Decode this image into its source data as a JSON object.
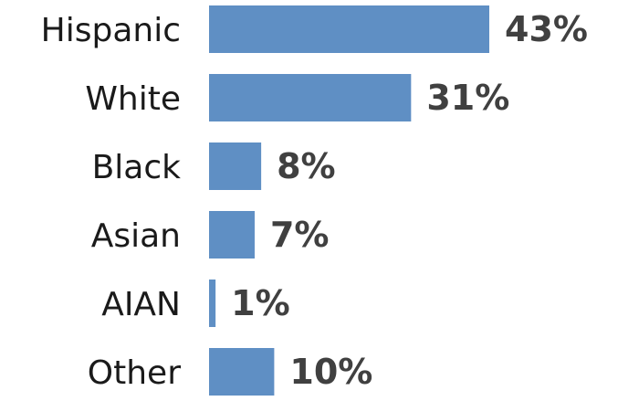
{
  "chart_data": {
    "type": "bar",
    "orientation": "horizontal",
    "categories": [
      "Hispanic",
      "White",
      "Black",
      "Asian",
      "AIAN",
      "Other"
    ],
    "values": [
      43,
      31,
      8,
      7,
      1,
      10
    ],
    "value_labels": [
      "43%",
      "31%",
      "8%",
      "7%",
      "1%",
      "10%"
    ],
    "title": "",
    "xlabel": "",
    "ylabel": "",
    "xlim": [
      0,
      43
    ],
    "grid": false,
    "legend": "none",
    "colors": {
      "bar": "#5f8fc4",
      "category_text": "#1a1a1a",
      "value_text": "#404040"
    }
  }
}
